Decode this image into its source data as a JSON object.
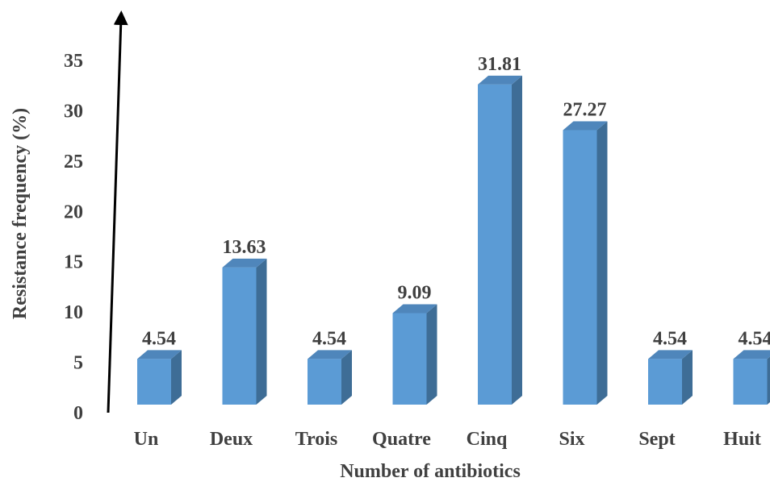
{
  "chart_data": {
    "type": "bar",
    "title": "",
    "xlabel": "Number of antibiotics",
    "ylabel": "Resistance frequency (%)",
    "categories": [
      "Un",
      "Deux",
      "Trois",
      "Quatre",
      "Cinq",
      "Six",
      "Sept",
      "Huit"
    ],
    "values": [
      4.54,
      13.63,
      4.54,
      9.09,
      31.81,
      27.27,
      4.54,
      4.54
    ],
    "data_labels": [
      "4.54",
      "13.63",
      "4.54",
      "9.09",
      "31.81",
      "27.27",
      "4.54",
      "4.54"
    ],
    "yticks": [
      "0",
      "5",
      "10",
      "15",
      "20",
      "25",
      "30",
      "35"
    ],
    "ylim": [
      0,
      35
    ],
    "grid": false,
    "legend": "none",
    "bar_style": "3d-column",
    "colors": {
      "bar_front": "#5b9bd5",
      "bar_side": "#3e6d96",
      "bar_top": "#4f86bb",
      "text": "#404040",
      "axis_arrow": "#000000"
    }
  }
}
